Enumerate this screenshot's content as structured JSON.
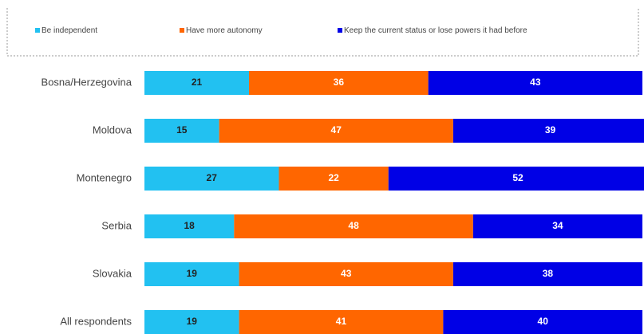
{
  "chart_data": {
    "type": "stacked-bar-horizontal",
    "categories": [
      "Bosna/Herzegovina",
      "Moldova",
      "Montenegro",
      "Serbia",
      "Slovakia",
      "All respondents"
    ],
    "series": [
      {
        "name": "Be independent",
        "color": "#22c1f1",
        "values": [
          21,
          15,
          27,
          18,
          19,
          19
        ]
      },
      {
        "name": "Have more autonomy",
        "color": "#ff6600",
        "values": [
          36,
          47,
          22,
          48,
          43,
          41
        ]
      },
      {
        "name": "Keep the current status or lose powers it had before",
        "color": "#0000e6",
        "values": [
          43,
          39,
          52,
          34,
          38,
          40
        ]
      }
    ],
    "xlim": [
      0,
      100
    ]
  }
}
